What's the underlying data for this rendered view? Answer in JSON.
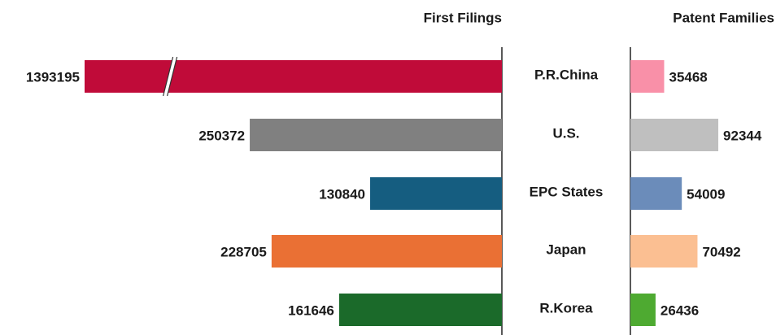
{
  "chart_data": [
    {
      "type": "bar",
      "title": "First Filings",
      "categories": [
        "P.R.China",
        "U.S.",
        "EPC States",
        "Japan",
        "R.Korea"
      ],
      "values": [
        1393195,
        250372,
        130840,
        228705,
        161646
      ],
      "colors": [
        "#c00b39",
        "#808080",
        "#155d80",
        "#ea7034",
        "#1b6a2a"
      ],
      "xlim": [
        0,
        414400
      ],
      "axis_break": true
    },
    {
      "type": "bar",
      "title": "Patent Families",
      "values": [
        35468,
        92344,
        54009,
        70492,
        26436
      ],
      "colors": [
        "#f990a8",
        "#bfbfbf",
        "#6b8cba",
        "#fbbf92",
        "#4eaa31"
      ],
      "xlim": [
        0,
        153000
      ]
    }
  ]
}
